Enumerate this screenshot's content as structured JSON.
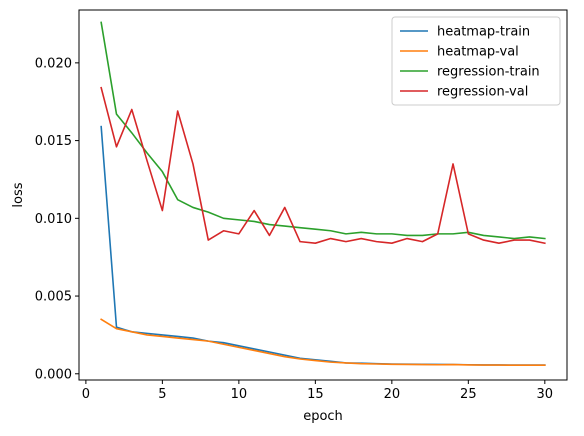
{
  "chart_data": {
    "type": "line",
    "title": "",
    "xlabel": "epoch",
    "ylabel": "loss",
    "xlim": [
      -0.45,
      31.45
    ],
    "ylim": [
      -0.0004,
      0.0234
    ],
    "xticks": [
      0,
      5,
      10,
      15,
      20,
      25,
      30
    ],
    "yticks": [
      0.0,
      0.005,
      0.01,
      0.015,
      0.02
    ],
    "ytick_labels": [
      "0.000",
      "0.005",
      "0.010",
      "0.015",
      "0.020"
    ],
    "grid": false,
    "legend_position": "top-right",
    "x": [
      1,
      2,
      3,
      4,
      5,
      6,
      7,
      8,
      9,
      10,
      11,
      12,
      13,
      14,
      15,
      16,
      17,
      18,
      19,
      20,
      21,
      22,
      23,
      24,
      25,
      26,
      27,
      28,
      29,
      30
    ],
    "series": [
      {
        "name": "heatmap-train",
        "color": "#1f77b4",
        "values": [
          0.0159,
          0.003,
          0.0027,
          0.0026,
          0.0025,
          0.0024,
          0.0023,
          0.0021,
          0.002,
          0.0018,
          0.0016,
          0.0014,
          0.0012,
          0.001,
          0.0009,
          0.0008,
          0.0007,
          0.00068,
          0.00065,
          0.00063,
          0.00062,
          0.00061,
          0.0006,
          0.00059,
          0.00058,
          0.00057,
          0.00057,
          0.00056,
          0.00056,
          0.00056
        ]
      },
      {
        "name": "heatmap-val",
        "color": "#ff7f0e",
        "values": [
          0.0035,
          0.0029,
          0.0027,
          0.0025,
          0.0024,
          0.0023,
          0.0022,
          0.0021,
          0.0019,
          0.0017,
          0.0015,
          0.0013,
          0.0011,
          0.00095,
          0.00085,
          0.00075,
          0.0007,
          0.00065,
          0.00063,
          0.00061,
          0.0006,
          0.00059,
          0.00058,
          0.00059,
          0.00057,
          0.00056,
          0.00056,
          0.00055,
          0.00055,
          0.00055
        ]
      },
      {
        "name": "regression-train",
        "color": "#2ca02c",
        "values": [
          0.0226,
          0.0167,
          0.0155,
          0.0142,
          0.013,
          0.0112,
          0.0107,
          0.0104,
          0.01,
          0.0099,
          0.0098,
          0.0096,
          0.0095,
          0.0094,
          0.0093,
          0.0092,
          0.009,
          0.0091,
          0.009,
          0.009,
          0.0089,
          0.0089,
          0.009,
          0.009,
          0.0091,
          0.0089,
          0.0088,
          0.0087,
          0.0088,
          0.0087
        ]
      },
      {
        "name": "regression-val",
        "color": "#d62728",
        "values": [
          0.0184,
          0.0146,
          0.017,
          0.0137,
          0.0105,
          0.0169,
          0.0135,
          0.0086,
          0.0092,
          0.009,
          0.0105,
          0.0089,
          0.0107,
          0.0085,
          0.0084,
          0.0087,
          0.0085,
          0.0087,
          0.0085,
          0.0084,
          0.0087,
          0.0085,
          0.009,
          0.0135,
          0.009,
          0.0086,
          0.0084,
          0.0086,
          0.0086,
          0.0084
        ]
      }
    ]
  }
}
